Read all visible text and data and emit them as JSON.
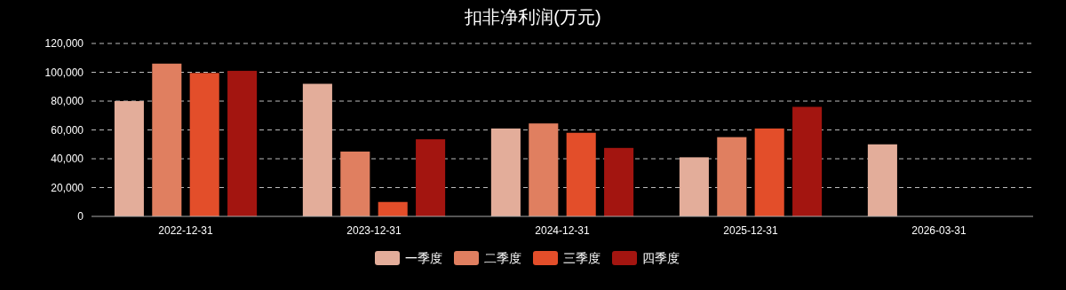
{
  "chart_data": {
    "type": "bar",
    "title": "扣非净利润(万元)",
    "categories": [
      "2022-12-31",
      "2023-12-31",
      "2024-12-31",
      "2025-12-31",
      "2026-03-31"
    ],
    "series": [
      {
        "name": "一季度",
        "color": "#e3ad9a",
        "values": [
          80000,
          92000,
          61000,
          41000,
          50000
        ]
      },
      {
        "name": "二季度",
        "color": "#e07f60",
        "values": [
          106000,
          45000,
          64500,
          55000,
          null
        ]
      },
      {
        "name": "三季度",
        "color": "#e34e2a",
        "values": [
          99500,
          10000,
          58000,
          61000,
          null
        ]
      },
      {
        "name": "四季度",
        "color": "#a31510",
        "values": [
          101000,
          53500,
          47500,
          76000,
          null
        ]
      }
    ],
    "ylim": [
      0,
      120000
    ],
    "yticks": [
      {
        "value": 0,
        "label": "0"
      },
      {
        "value": 20000,
        "label": "20,000"
      },
      {
        "value": 40000,
        "label": "40,000"
      },
      {
        "value": 60000,
        "label": "60,000"
      },
      {
        "value": 80000,
        "label": "80,000"
      },
      {
        "value": 100000,
        "label": "100,000"
      },
      {
        "value": 120000,
        "label": "120,000"
      }
    ],
    "grid": "y",
    "legend": "bottom"
  }
}
